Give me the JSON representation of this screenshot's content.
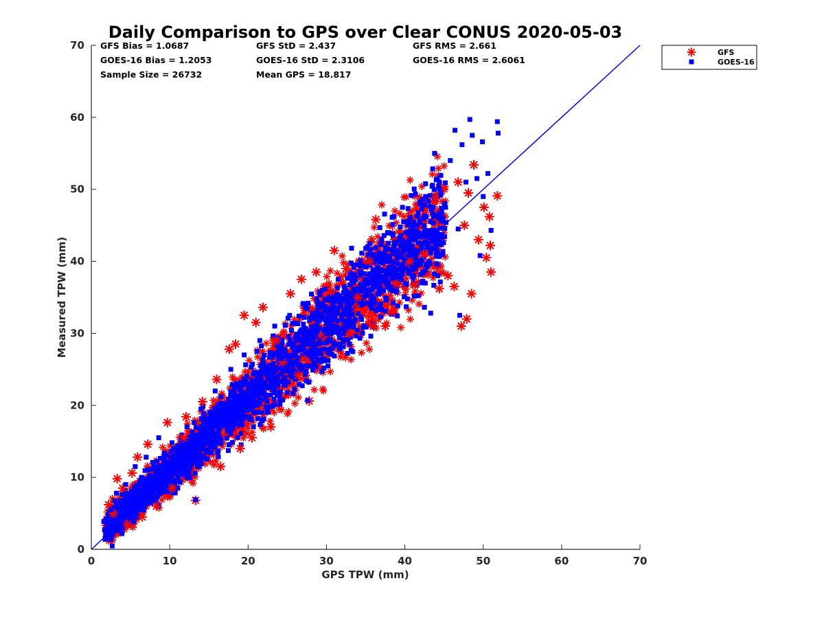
{
  "chart_data": {
    "type": "scatter",
    "title": "Daily Comparison to GPS over Clear CONUS 2020-05-03",
    "xlabel": "GPS TPW (mm)",
    "ylabel": "Measured TPW (mm)",
    "xlim": [
      0,
      70
    ],
    "ylim": [
      0,
      70
    ],
    "xticks": [
      "0",
      "10",
      "20",
      "30",
      "40",
      "50",
      "60",
      "70"
    ],
    "yticks": [
      "0",
      "10",
      "20",
      "30",
      "40",
      "50",
      "60",
      "70"
    ],
    "stats": [
      [
        "GFS Bias = 1.0687",
        "GFS StD = 2.437",
        "GFS RMS = 2.661"
      ],
      [
        "GOES-16 Bias = 1.2053",
        "GOES-16 StD = 2.3106",
        "GOES-16 RMS = 2.6061"
      ],
      [
        "Sample Size = 26732",
        "Mean GPS = 18.817",
        ""
      ]
    ],
    "legend": {
      "placement": "outside-top-right",
      "entries": [
        {
          "label": "GFS",
          "marker": "asterisk",
          "color": "#ff0000"
        },
        {
          "label": "GOES-16",
          "marker": "square",
          "color": "#0000ff"
        }
      ]
    },
    "reference_line": {
      "type": "one-to-one",
      "x": [
        0,
        70
      ],
      "y": [
        0,
        70
      ],
      "color": "#0000ff"
    },
    "series": [
      {
        "name": "GFS",
        "color": "#ff0000",
        "marker": "asterisk",
        "points": [
          [
            2.2,
            6.2
          ],
          [
            2.8,
            5.0
          ],
          [
            3.3,
            9.8
          ],
          [
            4.0,
            8.5
          ],
          [
            4.6,
            3.5
          ],
          [
            5.2,
            10.6
          ],
          [
            5.9,
            12.8
          ],
          [
            6.5,
            4.5
          ],
          [
            7.2,
            14.6
          ],
          [
            8.3,
            6.0
          ],
          [
            9.7,
            17.6
          ],
          [
            10.3,
            8.5
          ],
          [
            11.8,
            15.5
          ],
          [
            12.1,
            18.4
          ],
          [
            13.3,
            6.8
          ],
          [
            14.2,
            20.5
          ],
          [
            16.0,
            23.6
          ],
          [
            16.5,
            11.5
          ],
          [
            17.6,
            27.8
          ],
          [
            18.4,
            28.5
          ],
          [
            19.0,
            14.0
          ],
          [
            20.5,
            15.5
          ],
          [
            21.9,
            33.6
          ],
          [
            22.9,
            17.0
          ],
          [
            25.4,
            35.5
          ],
          [
            26.4,
            24.2
          ],
          [
            26.8,
            37.5
          ],
          [
            27.8,
            20.6
          ],
          [
            28.7,
            38.5
          ],
          [
            29.5,
            29.5
          ],
          [
            30.5,
            35.8
          ],
          [
            31.0,
            41.5
          ],
          [
            32.5,
            39.0
          ],
          [
            33.0,
            30.0
          ],
          [
            34.0,
            35.0
          ],
          [
            35.5,
            40.0
          ],
          [
            36.0,
            31.0
          ],
          [
            36.3,
            45.8
          ],
          [
            37.5,
            31.0
          ],
          [
            38.3,
            33.0
          ],
          [
            39.0,
            36.8
          ],
          [
            40.6,
            40.0
          ],
          [
            41.3,
            36.8
          ],
          [
            42.4,
            41.0
          ],
          [
            43.9,
            48.8
          ],
          [
            44.4,
            36.2
          ],
          [
            45.5,
            38.0
          ],
          [
            46.3,
            36.5
          ],
          [
            46.8,
            51.0
          ],
          [
            47.2,
            31.0
          ],
          [
            47.9,
            32.0
          ],
          [
            48.5,
            35.5
          ],
          [
            48.8,
            53.4
          ],
          [
            49.4,
            43.0
          ],
          [
            50.1,
            47.5
          ],
          [
            50.4,
            40.5
          ],
          [
            50.8,
            46.2
          ],
          [
            50.9,
            42.2
          ],
          [
            51.0,
            38.5
          ],
          [
            51.8,
            49.1
          ],
          [
            19.5,
            32.5
          ],
          [
            21.0,
            31.5
          ],
          [
            23.6,
            29.0
          ],
          [
            24.4,
            26.0
          ],
          [
            27.0,
            26.5
          ],
          [
            33.8,
            33.5
          ],
          [
            47.6,
            45.0
          ],
          [
            48.1,
            49.5
          ]
        ]
      },
      {
        "name": "GOES-16",
        "color": "#0000ff",
        "marker": "square",
        "points": [
          [
            2.5,
            5.5
          ],
          [
            3.2,
            7.8
          ],
          [
            3.9,
            4.5
          ],
          [
            4.4,
            9.0
          ],
          [
            5.0,
            5.8
          ],
          [
            5.6,
            11.5
          ],
          [
            6.4,
            8.0
          ],
          [
            7.0,
            12.8
          ],
          [
            7.9,
            9.5
          ],
          [
            8.6,
            15.5
          ],
          [
            9.6,
            11.2
          ],
          [
            10.5,
            14.0
          ],
          [
            11.4,
            10.5
          ],
          [
            12.2,
            17.0
          ],
          [
            13.2,
            13.5
          ],
          [
            14.0,
            19.5
          ],
          [
            15.0,
            15.2
          ],
          [
            15.8,
            22.0
          ],
          [
            16.9,
            17.5
          ],
          [
            17.8,
            25.0
          ],
          [
            18.6,
            19.0
          ],
          [
            19.5,
            27.0
          ],
          [
            20.5,
            23.0
          ],
          [
            21.5,
            29.0
          ],
          [
            22.4,
            25.0
          ],
          [
            23.4,
            31.0
          ],
          [
            24.3,
            26.5
          ],
          [
            25.3,
            32.5
          ],
          [
            26.4,
            28.0
          ],
          [
            27.4,
            34.0
          ],
          [
            28.5,
            29.5
          ],
          [
            29.5,
            36.0
          ],
          [
            30.5,
            31.5
          ],
          [
            31.5,
            37.5
          ],
          [
            32.6,
            34.0
          ],
          [
            33.6,
            39.5
          ],
          [
            34.6,
            36.0
          ],
          [
            35.6,
            41.0
          ],
          [
            36.8,
            37.5
          ],
          [
            37.8,
            44.0
          ],
          [
            38.6,
            39.0
          ],
          [
            39.7,
            47.5
          ],
          [
            40.8,
            41.5
          ],
          [
            41.6,
            45.0
          ],
          [
            42.3,
            42.5
          ],
          [
            43.8,
            55.0
          ],
          [
            44.2,
            38.0
          ],
          [
            45.2,
            47.5
          ],
          [
            45.8,
            54.0
          ],
          [
            46.4,
            58.2
          ],
          [
            47.3,
            56.2
          ],
          [
            47.8,
            51.0
          ],
          [
            48.3,
            59.7
          ],
          [
            48.6,
            57.5
          ],
          [
            49.2,
            51.5
          ],
          [
            49.9,
            56.6
          ],
          [
            50.0,
            49.0
          ],
          [
            50.6,
            52.2
          ],
          [
            51.0,
            44.3
          ],
          [
            51.8,
            59.4
          ],
          [
            51.9,
            57.8
          ],
          [
            27.6,
            20.7
          ],
          [
            13.3,
            6.9
          ],
          [
            43.3,
            32.8
          ],
          [
            47.0,
            32.5
          ],
          [
            39.1,
            33.8
          ],
          [
            46.8,
            44.5
          ],
          [
            49.6,
            40.8
          ]
        ]
      }
    ]
  }
}
